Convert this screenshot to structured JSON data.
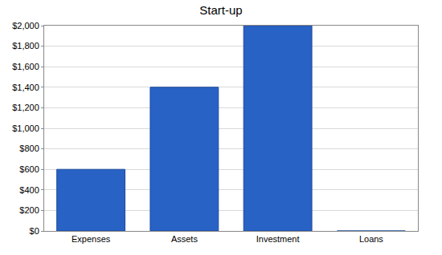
{
  "chart_data": {
    "type": "bar",
    "title": "Start-up",
    "categories": [
      "Expenses",
      "Assets",
      "Investment",
      "Loans"
    ],
    "values": [
      600,
      1400,
      2000,
      0
    ],
    "color": "#2862c5",
    "ylim": [
      0,
      2000
    ],
    "yticks": [
      {
        "value": 0,
        "label": "$0"
      },
      {
        "value": 200,
        "label": "$200"
      },
      {
        "value": 400,
        "label": "$400"
      },
      {
        "value": 600,
        "label": "$600"
      },
      {
        "value": 800,
        "label": "$800"
      },
      {
        "value": 1000,
        "label": "$1,000"
      },
      {
        "value": 1200,
        "label": "$1,200"
      },
      {
        "value": 1400,
        "label": "$1,400"
      },
      {
        "value": 1600,
        "label": "$1,600"
      },
      {
        "value": 1800,
        "label": "$1,800"
      },
      {
        "value": 2000,
        "label": "$2,000"
      }
    ],
    "grid": true
  }
}
